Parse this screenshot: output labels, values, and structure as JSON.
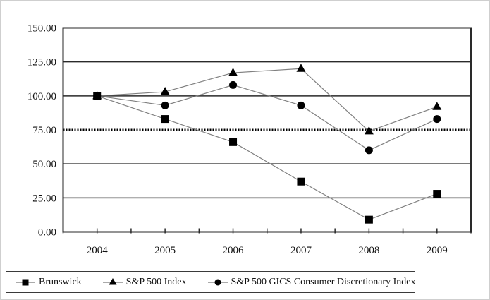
{
  "figure": {
    "background": "#ffffff",
    "border_color": "#cfcfcf"
  },
  "chart_data": {
    "type": "line",
    "x": [
      "2004",
      "2005",
      "2006",
      "2007",
      "2008",
      "2009"
    ],
    "series": [
      {
        "name": "Brunswick",
        "marker": "square",
        "values": [
          100,
          83,
          66,
          37,
          9,
          28
        ]
      },
      {
        "name": "S&P 500 Index",
        "marker": "triangle",
        "values": [
          100,
          103,
          117,
          120,
          74,
          92
        ]
      },
      {
        "name": "S&P 500 GICS Consumer Discretionary Index",
        "marker": "circle",
        "values": [
          100,
          93,
          108,
          93,
          60,
          83
        ]
      }
    ],
    "ylim": [
      0,
      150
    ],
    "yticks": [
      {
        "value": 0,
        "label": "0.00"
      },
      {
        "value": 25,
        "label": "25.00"
      },
      {
        "value": 50,
        "label": "50.00"
      },
      {
        "value": 75,
        "label": "75.00"
      },
      {
        "value": 100,
        "label": "100.00"
      },
      {
        "value": 125,
        "label": "125.00"
      },
      {
        "value": 150,
        "label": "150.00"
      }
    ],
    "special_gridline": {
      "value": 75,
      "style": "dotted"
    },
    "grid": true,
    "legend_position": "bottom-left",
    "colors": {
      "connector_line": "#808080",
      "marker": "#000000",
      "grid": "#2a2a2a",
      "axis_text": "#111111"
    }
  }
}
